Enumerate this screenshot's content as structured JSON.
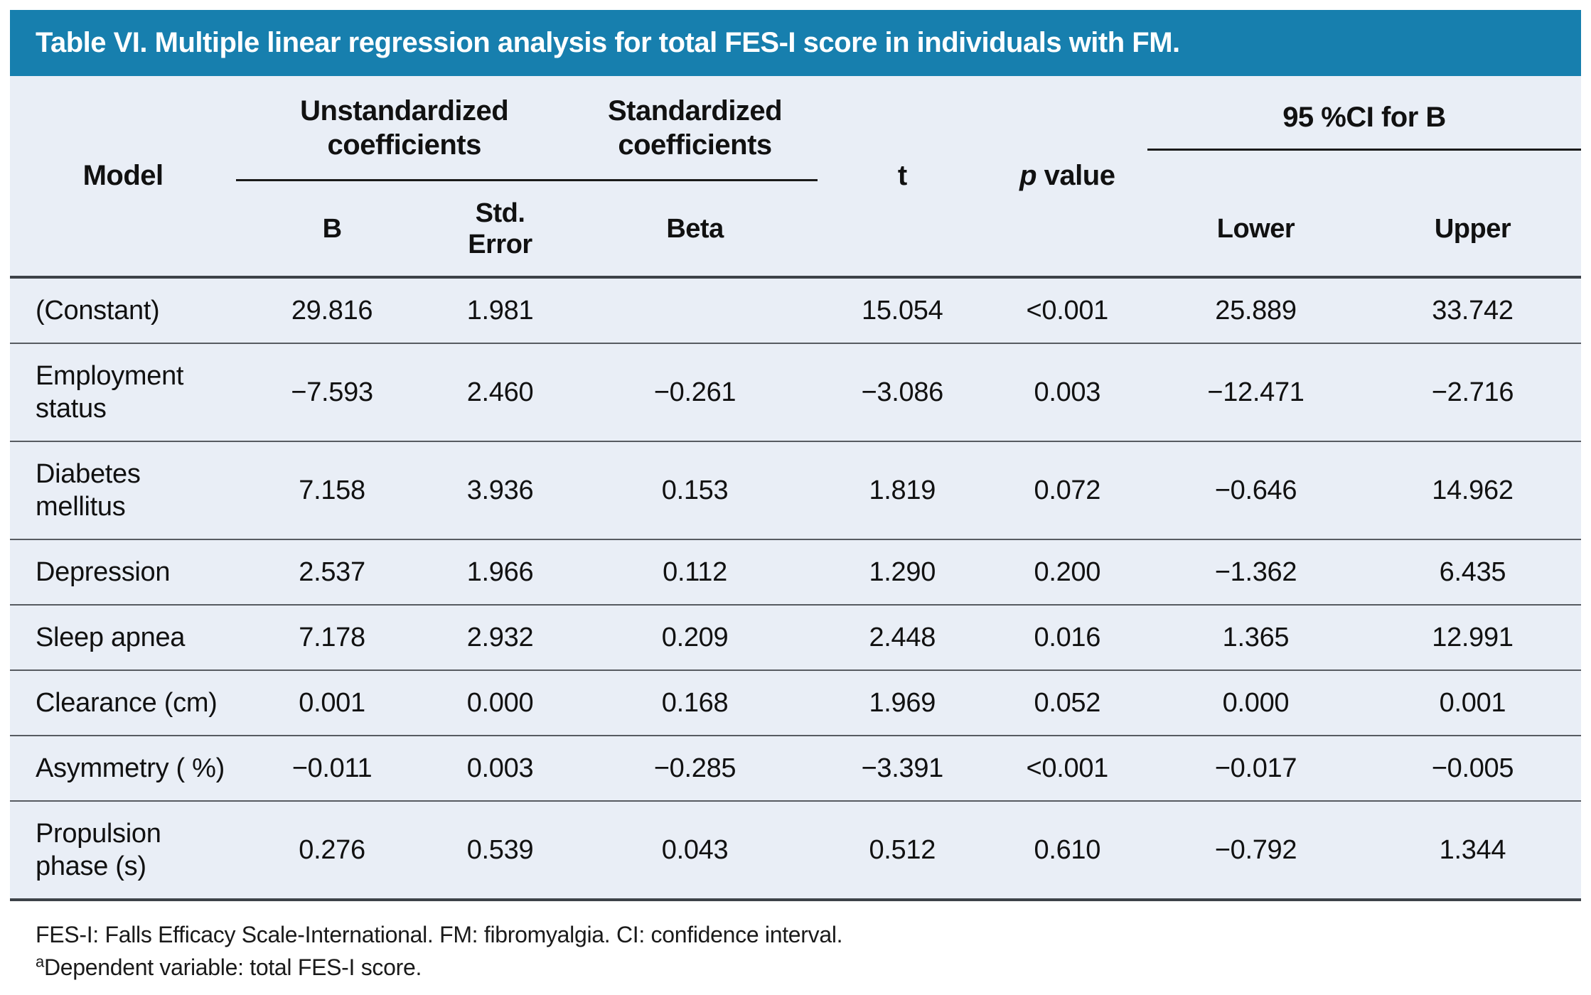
{
  "colors": {
    "title_bar_bg": "#177fae",
    "title_text": "#ffffff",
    "table_bg": "#e9eef6",
    "group_rule": "#1a1a1a",
    "row_divider": "#575b61",
    "heavy_rule": "#3d4248"
  },
  "title": "Table VI. Multiple linear regression analysis for total FES-I score in individuals with FM.",
  "table": {
    "col_headers": {
      "model": "Model",
      "unstandardized_group": "Unstandardized coefficients",
      "standardized_group": "Standardized coefficients",
      "t": "t",
      "p_symbol": "p",
      "p_label": " value",
      "ci_group": "95 %CI for B",
      "b": "B",
      "std_error": "Std.\nError",
      "beta": "Beta",
      "lower": "Lower",
      "upper": "Upper"
    },
    "rows": [
      {
        "label": "(Constant)",
        "b": "29.816",
        "se": "1.981",
        "beta": "",
        "t": "15.054",
        "p": "<0.001",
        "lower": "25.889",
        "upper": "33.742"
      },
      {
        "label": "Employment\nstatus",
        "b": "−7.593",
        "se": "2.460",
        "beta": "−0.261",
        "t": "−3.086",
        "p": "0.003",
        "lower": "−12.471",
        "upper": "−2.716"
      },
      {
        "label": "Diabetes\nmellitus",
        "b": "7.158",
        "se": "3.936",
        "beta": "0.153",
        "t": "1.819",
        "p": "0.072",
        "lower": "−0.646",
        "upper": "14.962"
      },
      {
        "label": "Depression",
        "b": "2.537",
        "se": "1.966",
        "beta": "0.112",
        "t": "1.290",
        "p": "0.200",
        "lower": "−1.362",
        "upper": "6.435"
      },
      {
        "label": "Sleep apnea",
        "b": "7.178",
        "se": "2.932",
        "beta": "0.209",
        "t": "2.448",
        "p": "0.016",
        "lower": "1.365",
        "upper": "12.991"
      },
      {
        "label": "Clearance (cm)",
        "b": "0.001",
        "se": "0.000",
        "beta": "0.168",
        "t": "1.969",
        "p": "0.052",
        "lower": "0.000",
        "upper": "0.001"
      },
      {
        "label": "Asymmetry ( %)",
        "b": "−0.011",
        "se": "0.003",
        "beta": "−0.285",
        "t": "−3.391",
        "p": "<0.001",
        "lower": "−0.017",
        "upper": "−0.005"
      },
      {
        "label": "Propulsion\nphase (s)",
        "b": "0.276",
        "se": "0.539",
        "beta": "0.043",
        "t": "0.512",
        "p": "0.610",
        "lower": "−0.792",
        "upper": "1.344"
      }
    ]
  },
  "footnotes": {
    "line1": "FES-I: Falls Efficacy Scale-International. FM: fibromyalgia. CI: confidence interval.",
    "marker": "a",
    "line2": "Dependent variable: total FES-I score."
  }
}
